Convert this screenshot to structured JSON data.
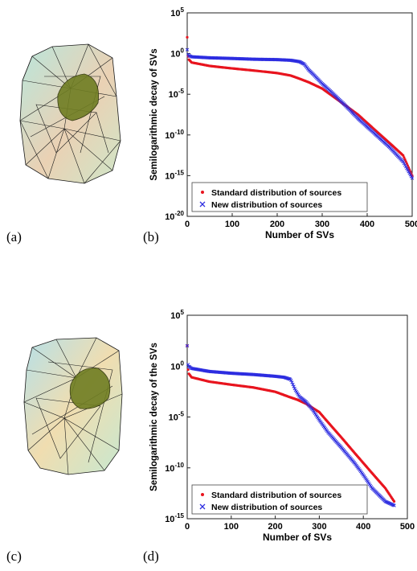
{
  "panel_labels": [
    "(a)",
    "(b)",
    "(c)",
    "(d)"
  ],
  "meshes": [
    {
      "name": "mesh-a",
      "fill_outer": "#a8d8d0",
      "fill_inner": "#e8c8a8",
      "core": "#6b7a1e"
    },
    {
      "name": "mesh-c",
      "fill_outer": "#a8d8d0",
      "fill_inner": "#e8d0a8",
      "core": "#6b7a1e"
    }
  ],
  "chart_data": [
    {
      "type": "scatter",
      "title": "",
      "xlabel": "Number of SVs",
      "ylabel": "Semilogarithmic decay of SVs",
      "xlim": [
        0,
        500
      ],
      "ylim": [
        1e-20,
        100000.0
      ],
      "yscale": "log",
      "xticks": [
        "0",
        "100",
        "200",
        "300",
        "400",
        "500"
      ],
      "yticks": [
        "10^5",
        "10^0",
        "10^-5",
        "10^-10",
        "10^-15",
        "10^-20"
      ],
      "legend_position": "bottom-left",
      "series": [
        {
          "name": "Standard distribution of sources",
          "color": "#e8141e",
          "marker": "dot",
          "x": [
            0,
            1,
            3,
            10,
            50,
            100,
            150,
            200,
            230,
            250,
            270,
            300,
            320,
            350,
            380,
            400,
            420,
            450,
            480,
            500
          ],
          "y": [
            100,
            1,
            0.2,
            0.08,
            0.03,
            0.015,
            0.008,
            0.004,
            0.002,
            0.0008,
            0.0003,
            5e-05,
            8e-06,
            5e-07,
            3e-08,
            3e-09,
            3e-10,
            1e-11,
            3e-13,
            1e-15
          ]
        },
        {
          "name": "New distribution of sources",
          "color": "#2d2de0",
          "marker": "x",
          "x": [
            0,
            1,
            3,
            10,
            50,
            100,
            150,
            200,
            230,
            250,
            260,
            270,
            285,
            300,
            320,
            350,
            380,
            400,
            420,
            450,
            480,
            500
          ],
          "y": [
            3,
            1,
            0.6,
            0.4,
            0.3,
            0.25,
            0.2,
            0.18,
            0.15,
            0.1,
            0.05,
            0.01,
            0.0015,
            0.0002,
            2e-05,
            5e-07,
            1e-08,
            1e-09,
            1e-10,
            3e-12,
            5e-14,
            5e-16
          ]
        }
      ]
    },
    {
      "type": "scatter",
      "title": "",
      "xlabel": "Number of SVs",
      "ylabel": "Semilogarithmic decay of the SVs",
      "xlim": [
        0,
        500
      ],
      "ylim": [
        1e-15,
        100000.0
      ],
      "yscale": "log",
      "xticks": [
        "0",
        "100",
        "200",
        "300",
        "400",
        "500"
      ],
      "yticks": [
        "10^5",
        "10^0",
        "10^-5",
        "10^-10",
        "10^-15"
      ],
      "legend_position": "bottom-left",
      "series": [
        {
          "name": "Standard distribution of sources",
          "color": "#e8141e",
          "marker": "dot",
          "x": [
            0,
            1,
            3,
            10,
            50,
            100,
            150,
            200,
            230,
            250,
            270,
            300,
            320,
            350,
            380,
            400,
            420,
            450,
            470
          ],
          "y": [
            100,
            1,
            0.2,
            0.08,
            0.03,
            0.015,
            0.008,
            0.003,
            0.001,
            0.0005,
            0.0002,
            3e-05,
            3e-06,
            1e-07,
            3e-09,
            3e-10,
            3e-11,
            1e-12,
            5e-14
          ]
        },
        {
          "name": "New distribution of sources",
          "color": "#2d2de0",
          "marker": "x",
          "x": [
            0,
            1,
            3,
            10,
            50,
            100,
            150,
            200,
            220,
            235,
            245,
            255,
            270,
            285,
            300,
            320,
            350,
            380,
            400,
            420,
            450,
            470
          ],
          "y": [
            100,
            2,
            1,
            0.6,
            0.3,
            0.2,
            0.15,
            0.1,
            0.08,
            0.05,
            0.005,
            0.001,
            0.0003,
            5e-05,
            5e-06,
            3e-07,
            1e-08,
            3e-10,
            2e-11,
            1e-12,
            5e-14,
            2e-14
          ]
        }
      ]
    }
  ]
}
